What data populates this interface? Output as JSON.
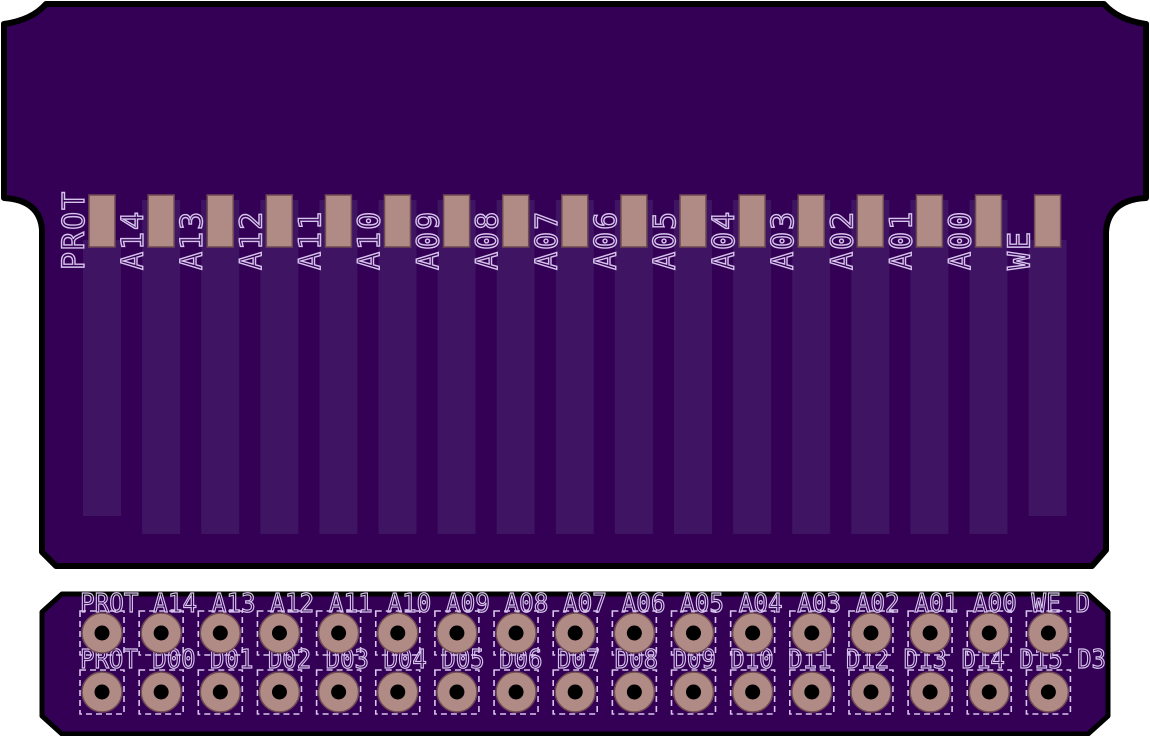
{
  "board": {
    "colors": {
      "substrate": "#330055",
      "outline": "#000000",
      "trace": "#3e1463",
      "pad": "#b08a84",
      "pad_edge": "#6e4a52",
      "silkscreen": "#d7c4ec",
      "hole": "#000000"
    }
  },
  "edge_connector": {
    "signals": [
      "PROT",
      "A14",
      "A13",
      "A12",
      "A11",
      "A10",
      "A09",
      "A08",
      "A07",
      "A06",
      "A05",
      "A04",
      "A03",
      "A02",
      "A01",
      "A00",
      "WE"
    ]
  },
  "header": {
    "columns": 17,
    "rows": 2,
    "row1_silk": "PROT A14 A13 A12 A11 A10 A09 A08 A07 A06 A05 A04 A03 A02 A01 A00 WE D",
    "row2_silk": "PROT D00 D01 D02 D03 D04 D05 D06 D07 D08 D09 D10 D11 D12 D13 D14 D15 D3"
  }
}
